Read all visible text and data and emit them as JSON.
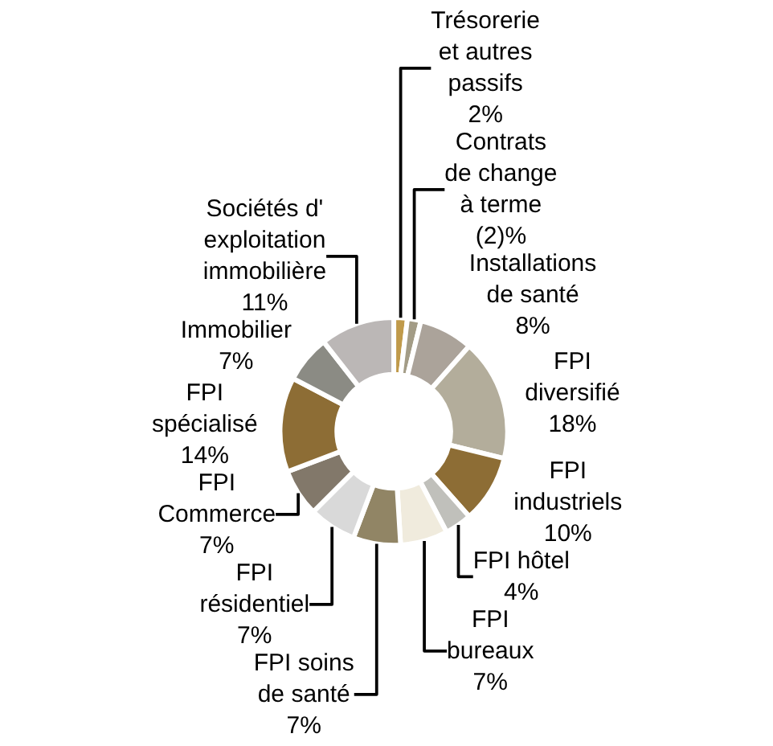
{
  "chart_data": {
    "type": "donut",
    "categories": [
      "Trésorerie\net autres\npassifs",
      "Contrats\nde change\nà terme",
      "Installations\nde santé",
      "FPI\ndiversifié",
      "FPI\nindustriels",
      "FPI hôtel",
      "FPI\nbureaux",
      "FPI soins\nde santé",
      "FPI\nrésidentiel",
      "FPI\nCommerce",
      "FPI\nspécialisé",
      "Immobilier",
      "Sociétés d'\nexploitation\nimmobilière"
    ],
    "values": [
      2,
      2,
      8,
      18,
      10,
      4,
      7,
      7,
      7,
      7,
      14,
      7,
      11
    ],
    "value_labels": [
      "2%",
      "(2)%",
      "8%",
      "18%",
      "10%",
      "4%",
      "7%",
      "7%",
      "7%",
      "7%",
      "14%",
      "7%",
      "11%"
    ],
    "colors": [
      "#c09a4a",
      "#a39c86",
      "#aba39a",
      "#b3ad9b",
      "#8d6d35",
      "#c0c0bb",
      "#f0ebdd",
      "#918565",
      "#d9d9d9",
      "#82786a",
      "#8d6d35",
      "#8b8b84",
      "#bbb7b6"
    ]
  }
}
